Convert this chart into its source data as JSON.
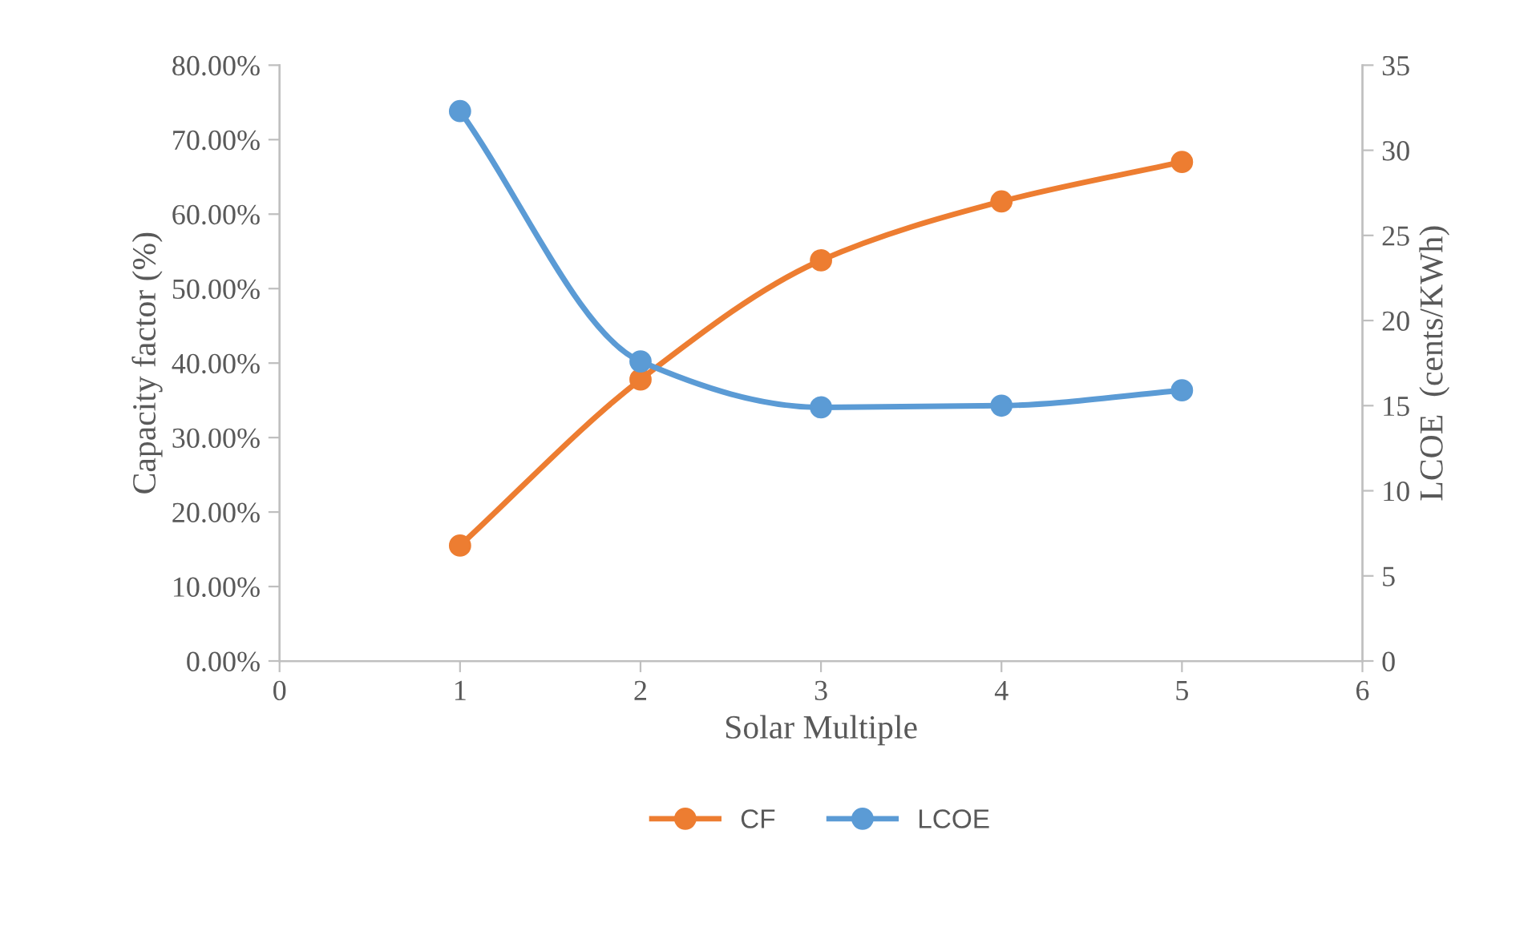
{
  "chart_data": {
    "type": "line",
    "xlabel": "Solar Multiple",
    "ylabel": "Capacity factor (%)",
    "y2label": "LCOE  (cents/KWh)",
    "x": [
      1,
      2,
      3,
      4,
      5
    ],
    "series": [
      {
        "name": "CF",
        "color": "#ed7d31",
        "values": [
          15.5,
          37.8,
          53.8,
          61.7,
          67.0
        ]
      },
      {
        "name": "LCOE",
        "color": "#5b9bd5",
        "values": [
          32.3,
          17.6,
          14.9,
          15.0,
          15.9
        ],
        "axis": "y2"
      }
    ],
    "xlim": [
      0,
      6
    ],
    "xticks": [
      0,
      1,
      2,
      3,
      4,
      5,
      6
    ],
    "ylim": [
      0,
      80
    ],
    "yticks": [
      {
        "value": 0,
        "label": "0.00%"
      },
      {
        "value": 10,
        "label": "10.00%"
      },
      {
        "value": 20,
        "label": "20.00%"
      },
      {
        "value": 30,
        "label": "30.00%"
      },
      {
        "value": 40,
        "label": "40.00%"
      },
      {
        "value": 50,
        "label": "50.00%"
      },
      {
        "value": 60,
        "label": "60.00%"
      },
      {
        "value": 70,
        "label": "70.00%"
      },
      {
        "value": 80,
        "label": "80.00%"
      }
    ],
    "y2lim": [
      0,
      35
    ],
    "y2ticks": [
      0,
      5,
      10,
      15,
      20,
      25,
      30,
      35
    ],
    "marker": "circle",
    "line_style": "solid",
    "grid": false,
    "legend": "bottom"
  }
}
